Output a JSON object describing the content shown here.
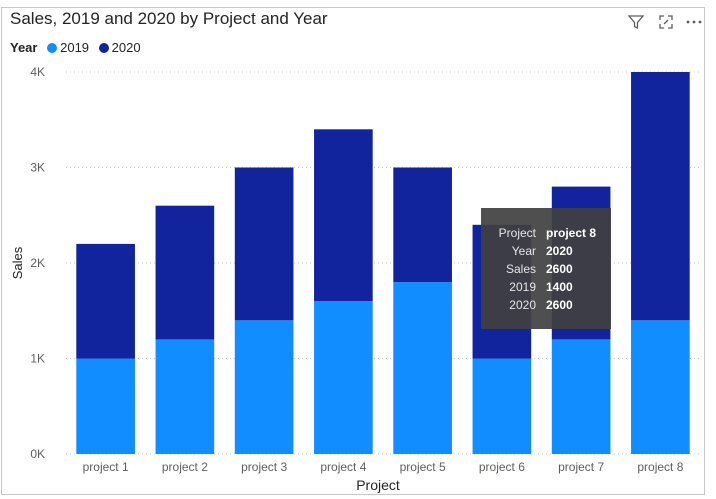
{
  "visual": {
    "title": "Sales, 2019 and 2020 by Project and Year",
    "toolbar": [
      {
        "icon": "filter-icon"
      },
      {
        "icon": "focus-mode-icon"
      },
      {
        "icon": "more-options-icon"
      }
    ],
    "legend": {
      "title": "Year",
      "items": [
        {
          "label": "2019",
          "color": "#118DFF"
        },
        {
          "label": "2020",
          "color": "#12239E"
        }
      ]
    }
  },
  "chart_data": {
    "type": "bar",
    "stacked": true,
    "title": "Sales, 2019 and 2020 by Project and Year",
    "xlabel": "Project",
    "ylabel": "Sales",
    "categories": [
      "project 1",
      "project 2",
      "project 3",
      "project 4",
      "project 5",
      "project 6",
      "project 7",
      "project 8"
    ],
    "series": [
      {
        "name": "2019",
        "color": "#118DFF",
        "values": [
          1000,
          1200,
          1400,
          1600,
          1800,
          1000,
          1200,
          1400
        ]
      },
      {
        "name": "2020",
        "color": "#12239E",
        "values": [
          1200,
          1400,
          1600,
          1800,
          1200,
          1400,
          1600,
          2600
        ]
      }
    ],
    "ylim": [
      0,
      4000
    ],
    "yticks": [
      0,
      1000,
      2000,
      3000,
      4000
    ],
    "ytick_labels": [
      "0K",
      "1K",
      "2K",
      "3K",
      "4K"
    ],
    "grid": true,
    "legend_position": "top-left"
  },
  "tooltip": {
    "rows": [
      {
        "key": "Project",
        "value": "project 8"
      },
      {
        "key": "Year",
        "value": "2020"
      },
      {
        "key": "Sales",
        "value": "2600"
      },
      {
        "key": "2019",
        "value": "1400"
      },
      {
        "key": "2020",
        "value": "2600"
      }
    ]
  }
}
